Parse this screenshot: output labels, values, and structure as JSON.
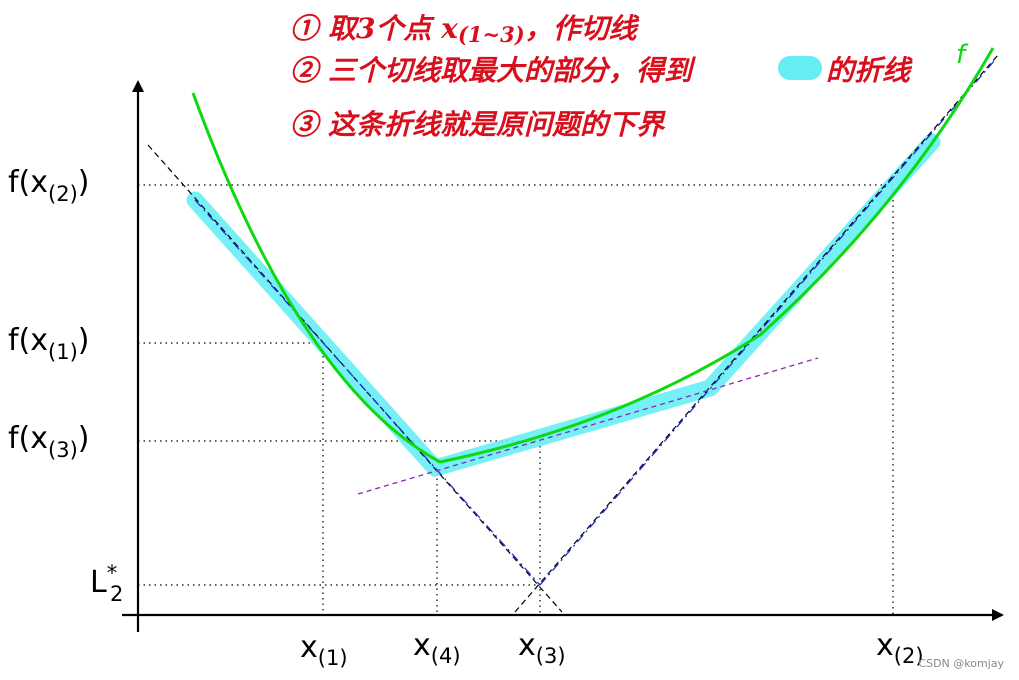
{
  "notes": [
    {
      "num": "①",
      "text": "取3个点 x",
      "sub": "(1~3)",
      "tail": "，作切线"
    },
    {
      "num": "②",
      "text": "三个切线取最大的部分，得到",
      "tail": "的折线"
    },
    {
      "num": "③",
      "text": "这条折线就是原问题的下界"
    }
  ],
  "curve_label": "f",
  "y_labels": [
    {
      "pre": "f(x",
      "sub": "(2)",
      "post": ")"
    },
    {
      "pre": "f(x",
      "sub": "(1)",
      "post": ")"
    },
    {
      "pre": "f(x",
      "sub": "(3)",
      "post": ")"
    }
  ],
  "l_label": {
    "base": "L",
    "sub": "2",
    "sup": "*"
  },
  "x_labels": [
    {
      "base": "x",
      "sub": "(1)"
    },
    {
      "base": "x",
      "sub": "(4)"
    },
    {
      "base": "x",
      "sub": "(3)"
    },
    {
      "base": "x",
      "sub": "(2)"
    }
  ],
  "watermark": "CSDN @komjay"
}
